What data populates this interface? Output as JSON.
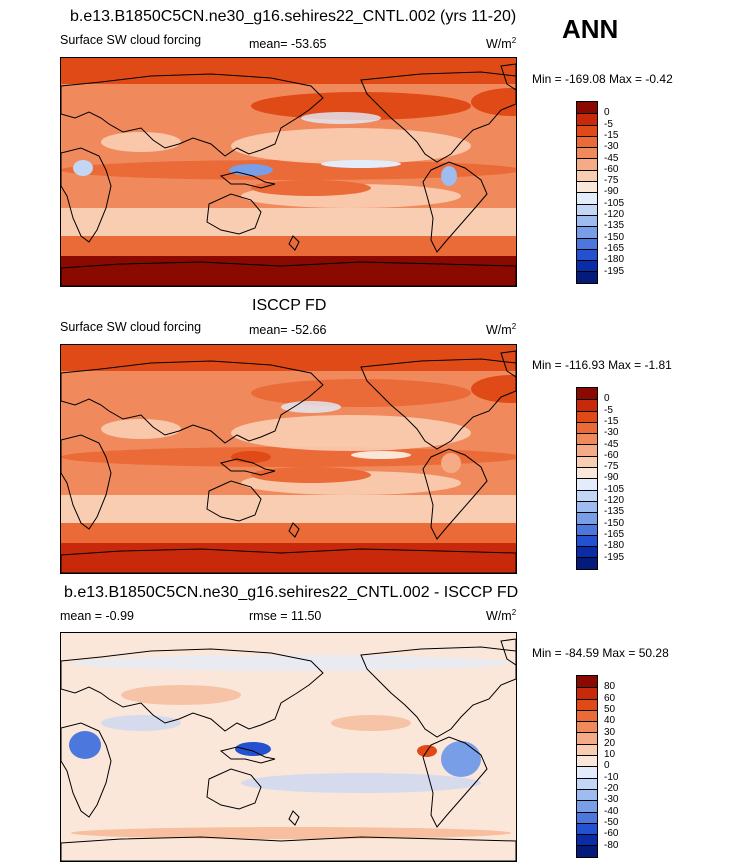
{
  "season": "ANN",
  "panels": [
    {
      "title": "b.e13.B1850C5CN.ne30_g16.sehires22_CNTL.002 (yrs 11-20)",
      "variable": "Surface SW cloud forcing",
      "mean_text": "mean= -53.65",
      "units": "W/m",
      "units_sup": "2",
      "minmax_text": "Min = -169.08 Max =  -0.42",
      "levels": [
        "0",
        "-5",
        "-15",
        "-30",
        "-45",
        "-60",
        "-75",
        "-90",
        "-105",
        "-120",
        "-135",
        "-150",
        "-165",
        "-180",
        "-195"
      ],
      "colors": [
        "#8b0a00",
        "#c8290a",
        "#e04a16",
        "#ea6a38",
        "#f08a5c",
        "#f5ac86",
        "#f9cdb2",
        "#fbe7d9",
        "#e3ecfb",
        "#c4d6f5",
        "#9ebcef",
        "#779ee7",
        "#4c78de",
        "#2451cf",
        "#0a2ca8",
        "#061a7a"
      ],
      "field_type": "model"
    },
    {
      "title": "ISCCP FD",
      "variable": "Surface SW cloud forcing",
      "mean_text": "mean= -52.66",
      "units": "W/m",
      "units_sup": "2",
      "minmax_text": "Min = -116.93 Max =  -1.81",
      "levels": [
        "0",
        "-5",
        "-15",
        "-30",
        "-45",
        "-60",
        "-75",
        "-90",
        "-105",
        "-120",
        "-135",
        "-150",
        "-165",
        "-180",
        "-195"
      ],
      "colors": [
        "#8b0a00",
        "#c8290a",
        "#e04a16",
        "#ea6a38",
        "#f08a5c",
        "#f5ac86",
        "#f9cdb2",
        "#fbe7d9",
        "#e3ecfb",
        "#c4d6f5",
        "#9ebcef",
        "#779ee7",
        "#4c78de",
        "#2451cf",
        "#0a2ca8",
        "#061a7a"
      ],
      "field_type": "obs"
    },
    {
      "title": "b.e13.B1850C5CN.ne30_g16.sehires22_CNTL.002 - ISCCP FD",
      "variable": "mean =  -0.99",
      "mean_text": "rmse =  11.50",
      "units": "W/m",
      "units_sup": "2",
      "minmax_text": "Min = -84.59 Max =  50.28",
      "levels": [
        "80",
        "60",
        "50",
        "40",
        "30",
        "20",
        "10",
        "0",
        "-10",
        "-20",
        "-30",
        "-40",
        "-50",
        "-60",
        "-80"
      ],
      "colors": [
        "#8b0a00",
        "#c8290a",
        "#e04a16",
        "#ea6a38",
        "#f08a5c",
        "#f5ac86",
        "#f9cdb2",
        "#fbe7d9",
        "#e3ecfb",
        "#c4d6f5",
        "#9ebcef",
        "#779ee7",
        "#4c78de",
        "#2451cf",
        "#0a2ca8",
        "#061a7a"
      ],
      "field_type": "diff"
    }
  ],
  "chart_data": [
    {
      "type": "heatmap",
      "title": "b.e13.B1850C5CN.ne30_g16.sehires22_CNTL.002 (yrs 11-20)",
      "variable": "Surface SW cloud forcing",
      "units": "W/m2",
      "mean": -53.65,
      "min": -169.08,
      "max": -0.42,
      "contour_levels": [
        0,
        -5,
        -15,
        -30,
        -45,
        -60,
        -75,
        -90,
        -105,
        -120,
        -135,
        -150,
        -165,
        -180,
        -195
      ],
      "projection": "cylindrical equidistant, centered on Pacific"
    },
    {
      "type": "heatmap",
      "title": "ISCCP FD",
      "variable": "Surface SW cloud forcing",
      "units": "W/m2",
      "mean": -52.66,
      "min": -116.93,
      "max": -1.81,
      "contour_levels": [
        0,
        -5,
        -15,
        -30,
        -45,
        -60,
        -75,
        -90,
        -105,
        -120,
        -135,
        -150,
        -165,
        -180,
        -195
      ],
      "projection": "cylindrical equidistant, centered on Pacific"
    },
    {
      "type": "heatmap",
      "title": "b.e13.B1850C5CN.ne30_g16.sehires22_CNTL.002 - ISCCP FD",
      "units": "W/m2",
      "mean": -0.99,
      "rmse": 11.5,
      "min": -84.59,
      "max": 50.28,
      "contour_levels": [
        80,
        60,
        50,
        40,
        30,
        20,
        10,
        0,
        -10,
        -20,
        -30,
        -40,
        -50,
        -60,
        -80
      ],
      "projection": "cylindrical equidistant, centered on Pacific"
    }
  ]
}
